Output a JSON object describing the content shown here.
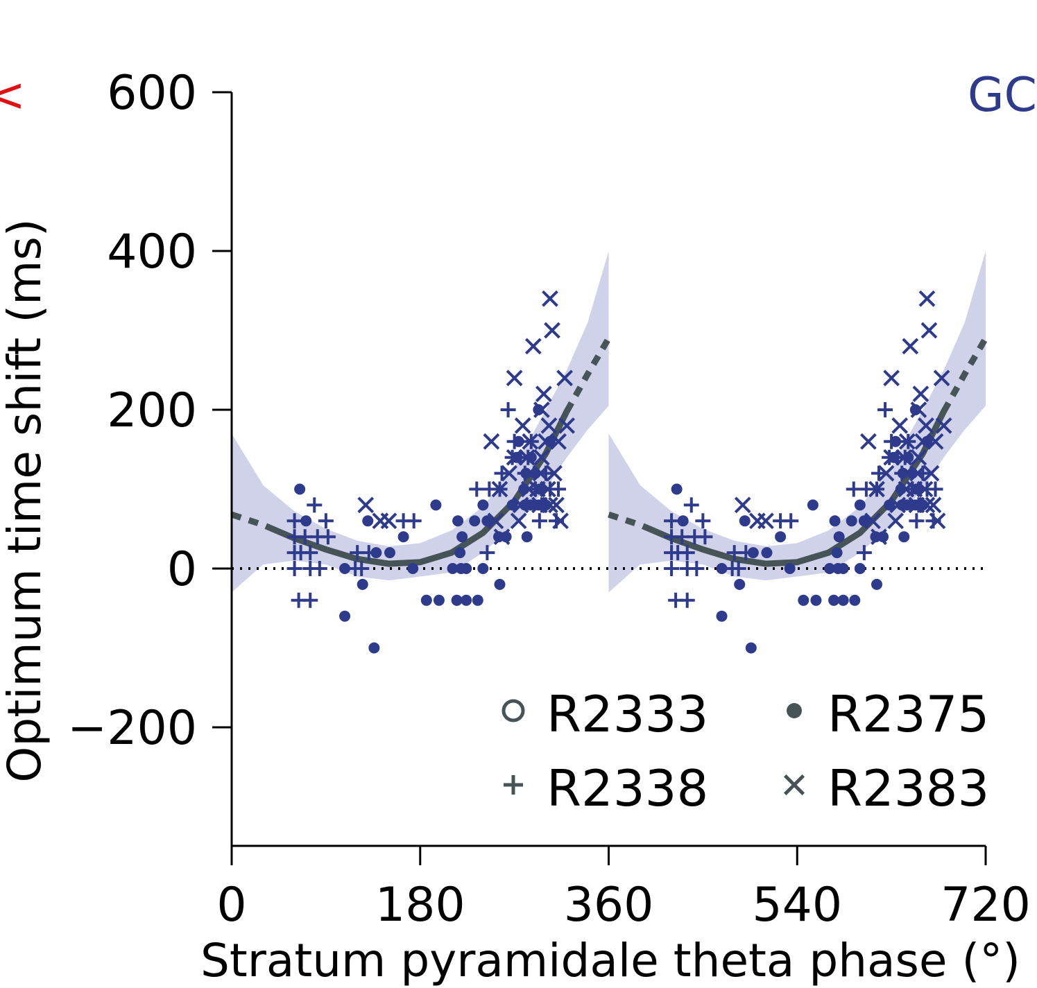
{
  "panel_label": "GC",
  "edge_mark": "<",
  "colors": {
    "points": "#2e3a8c",
    "fit": "#465457",
    "band": "#cfd2e8",
    "text": "#000000",
    "panel_label": "#2e3a8c",
    "edge_mark": "#e01010"
  },
  "chart_data": {
    "type": "scatter",
    "title": "",
    "xlabel": "Stratum pyramidale theta phase (°)",
    "ylabel": "Optimum time shift (ms)",
    "xlim": [
      0,
      720
    ],
    "ylim": [
      -350,
      600
    ],
    "xticks": [
      0,
      180,
      360,
      540,
      720
    ],
    "yticks": [
      600,
      400,
      200,
      0,
      -200
    ],
    "grid": false,
    "legend_placement": "bottom-right",
    "legend": [
      {
        "label": "R2333",
        "marker": "open-circle"
      },
      {
        "label": "R2375",
        "marker": "dot"
      },
      {
        "label": "R2338",
        "marker": "plus"
      },
      {
        "label": "R2383",
        "marker": "cross"
      }
    ],
    "duplicated_cycle": true,
    "cycle_period": 360,
    "zero_line": {
      "y": 0,
      "style": "dotted"
    },
    "fit": {
      "curve": [
        [
          0,
          68
        ],
        [
          30,
          55
        ],
        [
          60,
          38
        ],
        [
          90,
          24
        ],
        [
          120,
          12
        ],
        [
          150,
          6
        ],
        [
          180,
          8
        ],
        [
          210,
          20
        ],
        [
          240,
          45
        ],
        [
          270,
          85
        ],
        [
          300,
          145
        ],
        [
          320,
          198
        ],
        [
          340,
          245
        ],
        [
          360,
          290
        ]
      ],
      "solid_range": [
        40,
        320
      ],
      "band_upper": [
        [
          0,
          170
        ],
        [
          30,
          105
        ],
        [
          60,
          72
        ],
        [
          90,
          50
        ],
        [
          120,
          35
        ],
        [
          150,
          28
        ],
        [
          180,
          32
        ],
        [
          210,
          48
        ],
        [
          240,
          78
        ],
        [
          270,
          128
        ],
        [
          300,
          200
        ],
        [
          320,
          250
        ],
        [
          340,
          310
        ],
        [
          360,
          400
        ]
      ],
      "band_lower": [
        [
          0,
          -30
        ],
        [
          30,
          5
        ],
        [
          60,
          10
        ],
        [
          90,
          5
        ],
        [
          120,
          -10
        ],
        [
          150,
          -15
        ],
        [
          180,
          -10
        ],
        [
          210,
          -5
        ],
        [
          240,
          20
        ],
        [
          270,
          55
        ],
        [
          300,
          100
        ],
        [
          320,
          140
        ],
        [
          340,
          175
        ],
        [
          360,
          205
        ]
      ]
    },
    "series": [
      {
        "name": "R2375",
        "marker": "dot",
        "points": [
          [
            65,
            100
          ],
          [
            71,
            60
          ],
          [
            108,
            0
          ],
          [
            108,
            -60
          ],
          [
            125,
            -20
          ],
          [
            130,
            60
          ],
          [
            136,
            -100
          ],
          [
            138,
            20
          ],
          [
            151,
            20
          ],
          [
            164,
            40
          ],
          [
            173,
            0
          ],
          [
            186,
            -40
          ],
          [
            198,
            -40
          ],
          [
            195,
            80
          ],
          [
            211,
            0
          ],
          [
            215,
            -40
          ],
          [
            219,
            0
          ],
          [
            216,
            60
          ],
          [
            218,
            20
          ],
          [
            220,
            40
          ],
          [
            224,
            -40
          ],
          [
            224,
            0
          ],
          [
            232,
            60
          ],
          [
            235,
            -40
          ],
          [
            240,
            0
          ],
          [
            240,
            80
          ],
          [
            244,
            60
          ],
          [
            255,
            40
          ],
          [
            256,
            -20
          ],
          [
            262,
            40
          ],
          [
            268,
            80
          ],
          [
            272,
            140
          ],
          [
            274,
            160
          ],
          [
            279,
            100
          ],
          [
            280,
            80
          ],
          [
            281,
            120
          ],
          [
            282,
            40
          ],
          [
            285,
            80
          ],
          [
            286,
            140
          ],
          [
            290,
            120
          ],
          [
            293,
            80
          ],
          [
            294,
            100
          ],
          [
            293,
            200
          ],
          [
            296,
            100
          ],
          [
            300,
            80
          ],
          [
            304,
            160
          ]
        ]
      },
      {
        "name": "R2338",
        "marker": "plus",
        "points": [
          [
            60,
            60
          ],
          [
            60,
            40
          ],
          [
            60,
            20
          ],
          [
            60,
            0
          ],
          [
            64,
            -40
          ],
          [
            66,
            20
          ],
          [
            70,
            40
          ],
          [
            75,
            -40
          ],
          [
            75,
            20
          ],
          [
            75,
            0
          ],
          [
            79,
            80
          ],
          [
            82,
            40
          ],
          [
            84,
            0
          ],
          [
            90,
            60
          ],
          [
            92,
            40
          ],
          [
            118,
            0
          ],
          [
            120,
            20
          ],
          [
            124,
            0
          ],
          [
            131,
            20
          ],
          [
            164,
            60
          ],
          [
            174,
            60
          ],
          [
            234,
            100
          ],
          [
            244,
            20
          ],
          [
            246,
            100
          ],
          [
            256,
            100
          ],
          [
            258,
            120
          ],
          [
            264,
            200
          ],
          [
            268,
            140
          ],
          [
            270,
            160
          ],
          [
            276,
            140
          ],
          [
            280,
            120
          ],
          [
            283,
            140
          ],
          [
            286,
            160
          ],
          [
            290,
            100
          ],
          [
            294,
            60
          ],
          [
            296,
            80
          ],
          [
            300,
            120
          ],
          [
            304,
            100
          ],
          [
            310,
            60
          ],
          [
            312,
            100
          ]
        ]
      },
      {
        "name": "R2383",
        "marker": "cross",
        "points": [
          [
            128,
            80
          ],
          [
            142,
            60
          ],
          [
            150,
            60
          ],
          [
            248,
            160
          ],
          [
            252,
            60
          ],
          [
            256,
            100
          ],
          [
            258,
            40
          ],
          [
            265,
            120
          ],
          [
            270,
            240
          ],
          [
            270,
            140
          ],
          [
            274,
            60
          ],
          [
            276,
            80
          ],
          [
            278,
            180
          ],
          [
            282,
            140
          ],
          [
            284,
            100
          ],
          [
            285,
            160
          ],
          [
            288,
            280
          ],
          [
            292,
            100
          ],
          [
            294,
            80
          ],
          [
            295,
            120
          ],
          [
            296,
            140
          ],
          [
            296,
            200
          ],
          [
            298,
            220
          ],
          [
            300,
            160
          ],
          [
            302,
            100
          ],
          [
            303,
            180
          ],
          [
            304,
            340
          ],
          [
            304,
            80
          ],
          [
            306,
            300
          ],
          [
            308,
            120
          ],
          [
            310,
            80
          ],
          [
            312,
            160
          ],
          [
            314,
            60
          ],
          [
            318,
            240
          ],
          [
            320,
            180
          ]
        ]
      }
    ]
  }
}
